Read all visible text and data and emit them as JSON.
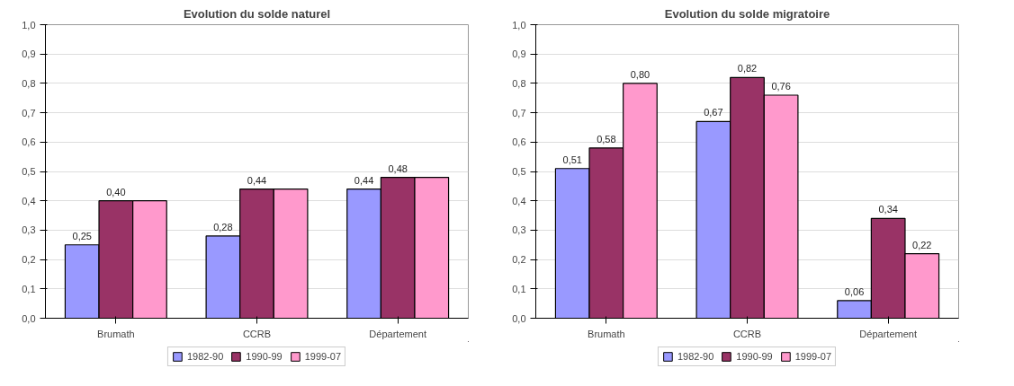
{
  "chart_data": [
    {
      "type": "bar",
      "title": "Evolution du solde naturel",
      "categories": [
        "Brumath",
        "CCRB",
        "Département"
      ],
      "series": [
        {
          "name": "1982-90",
          "color": "#9999ff",
          "values": [
            0.25,
            0.28,
            0.44
          ],
          "value_labels": [
            "0,25",
            "0,28",
            "0,44"
          ]
        },
        {
          "name": "1990-99",
          "color": "#993366",
          "values": [
            0.4,
            0.44,
            0.48
          ],
          "value_labels": [
            "0,40",
            "0,44",
            "0,48"
          ]
        },
        {
          "name": "1999-07",
          "color": "#ff99cc",
          "values": [
            0.4,
            0.44,
            0.48
          ],
          "value_labels": [
            null,
            null,
            null
          ]
        }
      ],
      "ylim": [
        0,
        1
      ],
      "yticks": [
        {
          "value": 0,
          "label": "0,0"
        },
        {
          "value": 0.1,
          "label": "0,1"
        },
        {
          "value": 0.2,
          "label": "0,2"
        },
        {
          "value": 0.3,
          "label": "0,3"
        },
        {
          "value": 0.4,
          "label": "0,4"
        },
        {
          "value": 0.5,
          "label": "0,5"
        },
        {
          "value": 0.6,
          "label": "0,6"
        },
        {
          "value": 0.7,
          "label": "0,7"
        },
        {
          "value": 0.8,
          "label": "0,8"
        },
        {
          "value": 0.9,
          "label": "0,9"
        },
        {
          "value": 1,
          "label": "1,0"
        }
      ],
      "grid": "y",
      "legend": "bottom"
    },
    {
      "type": "bar",
      "title": "Evolution du solde migratoire",
      "categories": [
        "Brumath",
        "CCRB",
        "Département"
      ],
      "series": [
        {
          "name": "1982-90",
          "color": "#9999ff",
          "values": [
            0.51,
            0.67,
            0.06
          ],
          "value_labels": [
            "0,51",
            "0,67",
            "0,06"
          ]
        },
        {
          "name": "1990-99",
          "color": "#993366",
          "values": [
            0.58,
            0.82,
            0.34
          ],
          "value_labels": [
            "0,58",
            "0,82",
            "0,34"
          ]
        },
        {
          "name": "1999-07",
          "color": "#ff99cc",
          "values": [
            0.8,
            0.76,
            0.22
          ],
          "value_labels": [
            "0,80",
            "0,76",
            "0,22"
          ]
        }
      ],
      "ylim": [
        0,
        1
      ],
      "yticks": [
        {
          "value": 0,
          "label": "0,0"
        },
        {
          "value": 0.1,
          "label": "0,1"
        },
        {
          "value": 0.2,
          "label": "0,2"
        },
        {
          "value": 0.3,
          "label": "0,3"
        },
        {
          "value": 0.4,
          "label": "0,4"
        },
        {
          "value": 0.5,
          "label": "0,5"
        },
        {
          "value": 0.6,
          "label": "0,6"
        },
        {
          "value": 0.7,
          "label": "0,7"
        },
        {
          "value": 0.8,
          "label": "0,8"
        },
        {
          "value": 0.9,
          "label": "0,9"
        },
        {
          "value": 1,
          "label": "1,0"
        }
      ],
      "grid": "y",
      "legend": "bottom"
    }
  ]
}
